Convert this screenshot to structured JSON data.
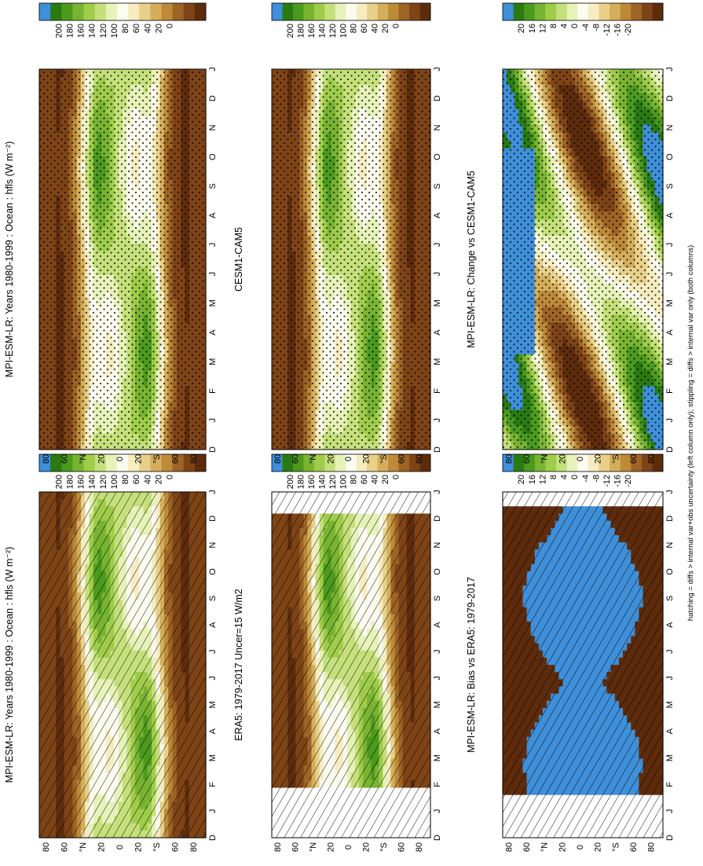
{
  "figure": {
    "footnote": "hatching = diffs > internal var+obs uncertainty (left column only); stippling = diffs > internal var only (both columns)"
  },
  "months": [
    "D",
    "J",
    "F",
    "M",
    "A",
    "M",
    "J",
    "J",
    "A",
    "S",
    "O",
    "N",
    "D",
    "J"
  ],
  "lat_ticks": [
    "80",
    "60",
    "°N",
    "20",
    "0",
    "20",
    "°S",
    "60",
    "80"
  ],
  "colorbars": {
    "abs": {
      "labels": [
        "200",
        "180",
        "160",
        "140",
        "120",
        "100",
        "80",
        "60",
        "40",
        "20",
        "0"
      ],
      "colors": [
        "#3f8fd9",
        "#2a7a12",
        "#4b9a1e",
        "#78b332",
        "#9fcc4a",
        "#c5e07a",
        "#e6f2b8",
        "#fbfbf0",
        "#f6ecc0",
        "#e8d08a",
        "#d4ae5a",
        "#bd8a38",
        "#9e6425",
        "#7f4416",
        "#5e2c0c"
      ]
    },
    "diff": {
      "labels": [
        "20",
        "16",
        "12",
        "8",
        "4",
        "0",
        "-4",
        "-8",
        "-12",
        "-16",
        "-20"
      ],
      "colors": [
        "#3f8fd9",
        "#2a7a12",
        "#4b9a1e",
        "#78b332",
        "#9fcc4a",
        "#c5e07a",
        "#e6f2b8",
        "#fbfbf0",
        "#f6ecc0",
        "#e8d08a",
        "#d4ae5a",
        "#bd8a38",
        "#9e6425",
        "#7f4416",
        "#5e2c0c"
      ]
    }
  },
  "chart_data": [
    {
      "type": "heatmap",
      "title": "MPI-ESM-LR: Years 1980-1999 : Ocean : hfls (W m⁻²)",
      "x": [
        "D",
        "J",
        "F",
        "M",
        "A",
        "M",
        "J",
        "J",
        "A",
        "S",
        "O",
        "N",
        "D",
        "J"
      ],
      "y": [
        "80",
        "60",
        "°N",
        "20",
        "0",
        "20",
        "°S",
        "60",
        "80"
      ],
      "colorbar": "abs",
      "pattern": "model",
      "hatching": true
    },
    {
      "type": "heatmap",
      "title": "MPI-ESM-LR: Years 1980-1999 : Ocean : hfls (W m⁻²)",
      "x": [
        "D",
        "J",
        "F",
        "M",
        "A",
        "M",
        "J",
        "J",
        "A",
        "S",
        "O",
        "N",
        "D",
        "J"
      ],
      "y": [
        "80",
        "60",
        "°N",
        "20",
        "0",
        "20",
        "°S",
        "60",
        "80"
      ],
      "colorbar": "abs",
      "pattern": "model",
      "stippling": true
    },
    {
      "type": "heatmap",
      "title": "ERA5: 1979-2017 Uncer=15 W/m2",
      "x": [
        "D",
        "J",
        "F",
        "M",
        "A",
        "M",
        "J",
        "J",
        "A",
        "S",
        "O",
        "N",
        "D",
        "J"
      ],
      "y": [
        "80",
        "60",
        "°N",
        "20",
        "0",
        "20",
        "°S",
        "60",
        "80"
      ],
      "colorbar": "abs",
      "pattern": "obs",
      "hatching": true
    },
    {
      "type": "heatmap",
      "title": "CESM1-CAM5",
      "x": [
        "D",
        "J",
        "F",
        "M",
        "A",
        "M",
        "J",
        "J",
        "A",
        "S",
        "O",
        "N",
        "D",
        "J"
      ],
      "y": [
        "80",
        "60",
        "°N",
        "20",
        "0",
        "20",
        "°S",
        "60",
        "80"
      ],
      "colorbar": "abs",
      "pattern": "model",
      "stippling": true
    },
    {
      "type": "heatmap",
      "title": "MPI-ESM-LR: Bias vs ERA5: 1979-2017",
      "x": [
        "D",
        "J",
        "F",
        "M",
        "A",
        "M",
        "J",
        "J",
        "A",
        "S",
        "O",
        "N",
        "D",
        "J"
      ],
      "y": [
        "80",
        "60",
        "°N",
        "20",
        "0",
        "20",
        "°S",
        "60",
        "80"
      ],
      "colorbar": "diff",
      "pattern": "bias",
      "hatching": true
    },
    {
      "type": "heatmap",
      "title": "MPI-ESM-LR: Change vs CESM1-CAM5",
      "x": [
        "D",
        "J",
        "F",
        "M",
        "A",
        "M",
        "J",
        "J",
        "A",
        "S",
        "O",
        "N",
        "D",
        "J"
      ],
      "y": [
        "80",
        "60",
        "°N",
        "20",
        "0",
        "20",
        "°S",
        "60",
        "80"
      ],
      "colorbar": "diff",
      "pattern": "change",
      "stippling": true
    }
  ]
}
